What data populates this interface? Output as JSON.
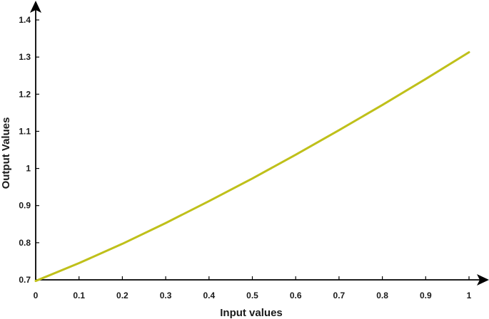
{
  "chart_data": {
    "type": "line",
    "title": "",
    "xlabel": "Input values",
    "ylabel": "Output Values",
    "xlim": [
      0,
      1
    ],
    "ylim": [
      0.7,
      1.4
    ],
    "x_ticks": [
      "0",
      "0.1",
      "0.2",
      "0.3",
      "0.4",
      "0.5",
      "0.6",
      "0.7",
      "0.8",
      "0.9",
      "1"
    ],
    "y_ticks": [
      "0.7",
      "0.8",
      "0.9",
      "1",
      "1.1",
      "1.2",
      "1.3",
      "1.4"
    ],
    "grid": false,
    "series": [
      {
        "color": "#bfc01a",
        "x": [
          0,
          0.1,
          0.2,
          0.3,
          0.4,
          0.5,
          0.6,
          0.7,
          0.8,
          0.9,
          1.0
        ],
        "y": [
          0.697,
          0.745,
          0.797,
          0.853,
          0.912,
          0.973,
          1.037,
          1.103,
          1.171,
          1.241,
          1.313
        ]
      }
    ]
  }
}
